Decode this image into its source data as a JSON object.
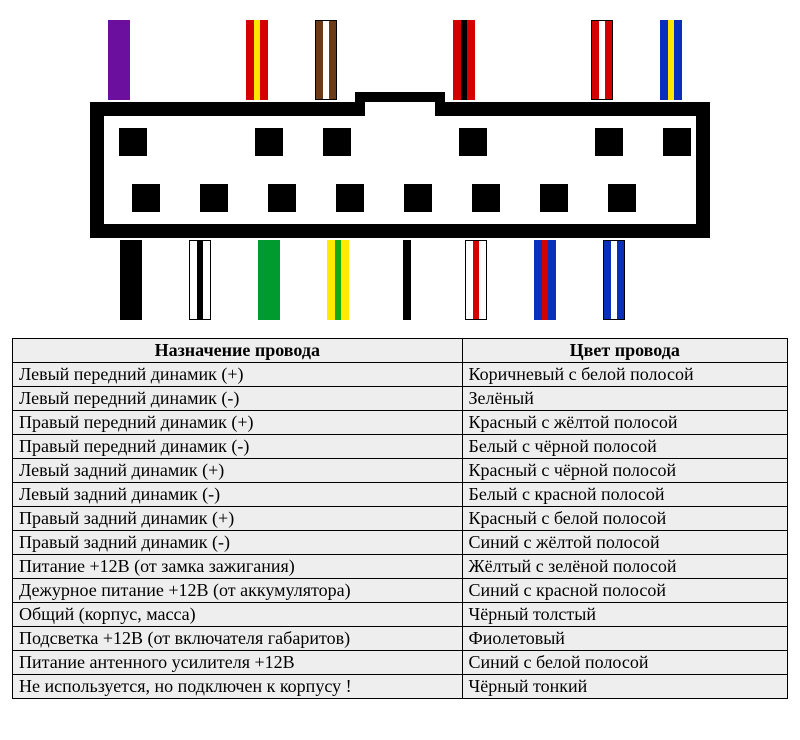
{
  "topWires": [
    {
      "base": "#6b0f9e",
      "stripe": null
    },
    null,
    {
      "base": "#d40000",
      "stripe": "#ffe600"
    },
    {
      "base": "#6b3a17",
      "stripe": "#ffffff",
      "outline": true
    },
    null,
    {
      "base": "#d40000",
      "stripe": "#000000"
    },
    null,
    {
      "base": "#d40000",
      "stripe": "#ffffff",
      "outline": true
    },
    {
      "base": "#0a2fbd",
      "stripe": "#ffe600"
    }
  ],
  "bottomWires": [
    {
      "base": "#000000",
      "stripe": null,
      "wide": true
    },
    {
      "base": "#ffffff",
      "stripe": "#000000",
      "outline": true
    },
    {
      "base": "#009b2e",
      "stripe": null
    },
    {
      "base": "#ffeb00",
      "stripe": "#17a81a"
    },
    {
      "base": "#000000",
      "stripe": null,
      "thin": true
    },
    {
      "base": "#ffffff",
      "stripe": "#d40000",
      "outline": true
    },
    {
      "base": "#0a2fbd",
      "stripe": "#d40000"
    },
    {
      "base": "#0a2fbd",
      "stripe": "#ffffff",
      "outline": true
    }
  ],
  "topPins": [
    1,
    0,
    1,
    1,
    0,
    1,
    0,
    1,
    1
  ],
  "bottomPins": [
    1,
    1,
    1,
    1,
    1,
    1,
    1,
    1
  ],
  "table": {
    "headers": [
      "Назначение провода",
      "Цвет провода"
    ],
    "rows": [
      [
        "Левый передний динамик (+)",
        "Коричневый с белой полосой"
      ],
      [
        "Левый передний динамик (-)",
        "Зелёный"
      ],
      [
        "Правый передний динамик (+)",
        "Красный с жёлтой полосой"
      ],
      [
        "Правый передний динамик (-)",
        "Белый с чёрной полосой"
      ],
      [
        "Левый задний динамик (+)",
        "Красный с чёрной полосой"
      ],
      [
        "Левый задний динамик (-)",
        "Белый с красной полосой"
      ],
      [
        "Правый задний динамик (+)",
        "Красный с белой полосой"
      ],
      [
        "Правый задний динамик (-)",
        "Синий с жёлтой полосой"
      ],
      [
        "Питание +12В (от замка зажигания)",
        "Жёлтый с зелёной полосой"
      ],
      [
        "Дежурное питание +12В (от аккумулятора)",
        "Синий с красной полосой"
      ],
      [
        "Общий (корпус, масса)",
        "Чёрный толстый"
      ],
      [
        "Подсветка +12В (от включателя габаритов)",
        "Фиолетовый"
      ],
      [
        "Питание антенного усилителя +12В",
        "Синий с белой полосой"
      ],
      [
        "Не используется, но подключен к корпусу !",
        "Чёрный тонкий"
      ]
    ]
  },
  "layout": {
    "topWiresLeft": 18,
    "bottomWiresLeft": 30,
    "topPinsLeft": 15,
    "bottomPinsLeft": 28,
    "wireGap": 47,
    "pinGap": 40
  }
}
